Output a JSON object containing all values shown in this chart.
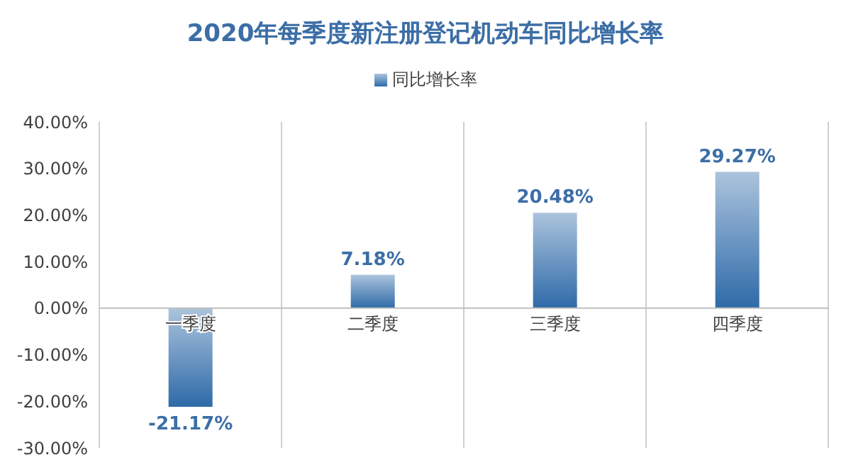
{
  "chart_data": {
    "type": "bar",
    "title": "2020年每季度新注册登记机动车同比增长率",
    "categories": [
      "一季度",
      "二季度",
      "三季度",
      "四季度"
    ],
    "series": [
      {
        "name": "同比增长率",
        "color": "#2e6aa8",
        "values": [
          -21.17,
          7.18,
          20.48,
          29.27
        ],
        "value_labels": [
          "-21.17%",
          "7.18%",
          "20.48%",
          "29.27%"
        ]
      }
    ],
    "ylim": [
      -30,
      40
    ],
    "yticks": [
      {
        "value": -30,
        "label": "-30.00%"
      },
      {
        "value": -20,
        "label": "-20.00%"
      },
      {
        "value": -10,
        "label": "-10.00%"
      },
      {
        "value": 0,
        "label": "0.00%"
      },
      {
        "value": 10,
        "label": "10.00%"
      },
      {
        "value": 20,
        "label": "20.00%"
      },
      {
        "value": 30,
        "label": "30.00%"
      },
      {
        "value": 40,
        "label": "40.00%"
      }
    ],
    "grid": "x",
    "legend": "top"
  }
}
